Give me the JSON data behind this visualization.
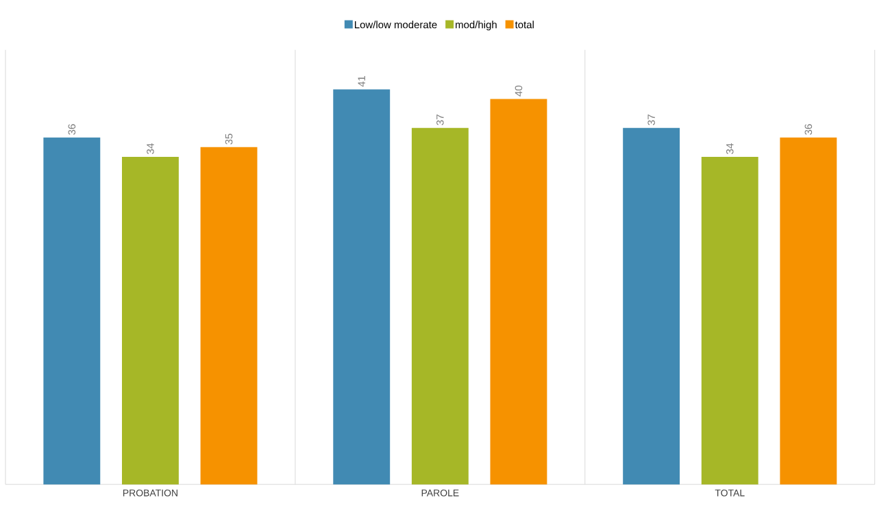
{
  "chart_data": {
    "type": "bar",
    "categories": [
      "PROBATION",
      "PAROLE",
      "TOTAL"
    ],
    "series": [
      {
        "name": "Low/low moderate",
        "color": "#418ab3",
        "values": [
          36,
          41,
          37
        ]
      },
      {
        "name": "mod/high",
        "color": "#a6b727",
        "values": [
          34,
          37,
          34
        ]
      },
      {
        "name": "total",
        "color": "#f69200",
        "values": [
          35,
          40,
          36
        ]
      }
    ],
    "data_labels": true,
    "grid": "x",
    "legend": "top"
  }
}
